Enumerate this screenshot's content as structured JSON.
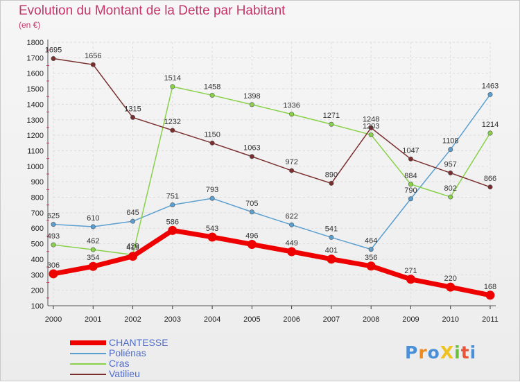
{
  "title": "Evolution du Montant de la Dette par Habitant",
  "subtitle": "(en €)",
  "logo_text": "ProXiti",
  "chart_data": {
    "type": "line",
    "categories": [
      "2000",
      "2001",
      "2002",
      "2003",
      "2004",
      "2005",
      "2006",
      "2007",
      "2008",
      "2009",
      "2010",
      "2011"
    ],
    "ylim": [
      100,
      1800
    ],
    "yticks": [
      100,
      200,
      300,
      400,
      500,
      600,
      700,
      800,
      900,
      1000,
      1100,
      1200,
      1300,
      1400,
      1500,
      1600,
      1700,
      1800
    ],
    "grid": true,
    "legend_position": "bottom-left",
    "series": [
      {
        "name": "CHANTESSE",
        "color": "#ee0000",
        "values": [
          306,
          354,
          419,
          586,
          543,
          496,
          449,
          401,
          356,
          271,
          220,
          168
        ],
        "labels": [
          "306",
          "354",
          "419",
          "586",
          "543",
          "496",
          "449",
          "401",
          "356",
          "271",
          "220",
          "168"
        ]
      },
      {
        "name": "Poliénas",
        "color": "#5a9fd0",
        "values": [
          625,
          610,
          645,
          751,
          793,
          705,
          622,
          541,
          464,
          790,
          1108,
          1463
        ],
        "labels": [
          "625",
          "610",
          "645",
          "751",
          "793",
          "705",
          "622",
          "541",
          "464",
          "790",
          "1108",
          "1463"
        ]
      },
      {
        "name": "Cras",
        "color": "#88d148",
        "values": [
          493,
          462,
          429,
          1514,
          1458,
          1398,
          1336,
          1271,
          1203,
          884,
          802,
          1214
        ],
        "labels": [
          "493",
          "462",
          "429",
          "1514",
          "1458",
          "1398",
          "1336",
          "1271",
          "1203",
          "884",
          "802",
          "1214"
        ]
      },
      {
        "name": "Vatilieu",
        "color": "#7a2e2e",
        "values": [
          1695,
          1656,
          1315,
          1232,
          1150,
          1063,
          972,
          890,
          1248,
          1047,
          957,
          866
        ],
        "labels": [
          "1695",
          "1656",
          "1315",
          "1232",
          "1150",
          "1063",
          "972",
          "890",
          "1248",
          "1047",
          "957",
          "866"
        ]
      }
    ]
  }
}
